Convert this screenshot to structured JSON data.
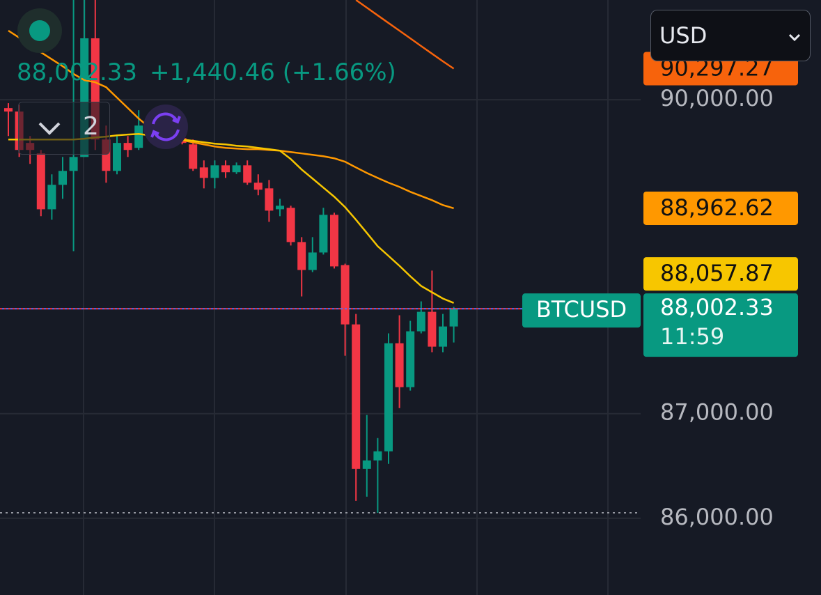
{
  "chart_data": {
    "type": "candlestick",
    "symbol": "BTCUSD",
    "currency": "USD",
    "last_price": 88002.33,
    "last_price_label": "88,002.33",
    "change_label": "+1,440.46 (+1.66%)",
    "indicator_count": 2,
    "countdown": "11:59",
    "ylim": [
      85267,
      90953
    ],
    "yticks": [
      {
        "value": 90000,
        "label": "90,000.00"
      },
      {
        "value": 87000,
        "label": "87,000.00"
      },
      {
        "value": 86000,
        "label": "86,000.00"
      }
    ],
    "grid": true,
    "up_color": "#089981",
    "down_color": "#f23645",
    "open": [
      89920,
      89887,
      89587,
      89487,
      88953,
      89187,
      89320,
      89453,
      90587,
      89620,
      89320,
      89587,
      89540,
      89720,
      89753,
      89653,
      89633,
      89573,
      89353,
      89253,
      89373,
      89307,
      89373,
      89207,
      89153,
      88953,
      88967,
      88640,
      88373,
      88540,
      88900,
      88420,
      87853,
      86473,
      86553,
      86640,
      87673,
      87253,
      87787,
      87973,
      87640,
      87833
    ],
    "high": [
      89967,
      89953,
      89653,
      89520,
      89287,
      89453,
      90953,
      90953,
      90953,
      89753,
      89653,
      89653,
      89900,
      89820,
      89853,
      89680,
      89650,
      89620,
      89420,
      89420,
      89420,
      89400,
      89420,
      89287,
      89233,
      89053,
      88987,
      88687,
      88687,
      88967,
      88920,
      88433,
      87953,
      86987,
      86767,
      87767,
      87940,
      87887,
      88073,
      88367,
      87953,
      88020
    ],
    "low": [
      89653,
      89453,
      89387,
      88887,
      88853,
      89053,
      88553,
      89453,
      89520,
      89207,
      89287,
      89453,
      89520,
      89690,
      89553,
      89600,
      89573,
      89320,
      89153,
      89153,
      89253,
      89290,
      89187,
      89087,
      88833,
      88887,
      88607,
      88120,
      88353,
      88520,
      88387,
      87553,
      86167,
      86207,
      86053,
      86520,
      87053,
      87220,
      87767,
      87587,
      87587,
      87680
    ],
    "close": [
      89887,
      89520,
      89520,
      88953,
      89187,
      89320,
      89453,
      90587,
      89620,
      89320,
      89587,
      89520,
      89753,
      89787,
      89620,
      89587,
      89587,
      89340,
      89253,
      89373,
      89307,
      89373,
      89207,
      89140,
      88940,
      88987,
      88640,
      88373,
      88540,
      88900,
      88407,
      87853,
      86473,
      86553,
      86640,
      87673,
      87253,
      87787,
      87973,
      87640,
      87833,
      88002.33
    ],
    "moving_averages": [
      {
        "color": "#f7630c",
        "value_label": "90,297.27",
        "values": [
          null,
          null,
          null,
          null,
          null,
          null,
          null,
          null,
          null,
          null,
          null,
          null,
          null,
          null,
          null,
          null,
          null,
          null,
          null,
          null,
          null,
          null,
          null,
          null,
          null,
          null,
          null,
          null,
          null,
          null,
          null,
          null,
          90953,
          90880,
          90806,
          90733,
          90660,
          90587,
          90513,
          90440,
          90367,
          90297.27
        ]
      },
      {
        "color": "#ff9800",
        "value_label": "88,962.62",
        "values": [
          90660,
          90593,
          90527,
          90453,
          90387,
          90320,
          90247,
          90187,
          90167,
          90120,
          90020,
          89920,
          89820,
          89733,
          89673,
          89633,
          89613,
          89593,
          89573,
          89553,
          89540,
          89533,
          89527,
          89527,
          89520,
          89513,
          89500,
          89487,
          89473,
          89460,
          89440,
          89407,
          89353,
          89300,
          89253,
          89207,
          89167,
          89120,
          89080,
          89040,
          88993,
          88962.62
        ]
      },
      {
        "color": "#f7c600",
        "value_label": "88,057.87",
        "values": [
          89620,
          89620,
          89620,
          89620,
          89620,
          89620,
          89620,
          89627,
          89640,
          89647,
          89660,
          89667,
          89673,
          89660,
          89647,
          89633,
          89620,
          89607,
          89593,
          89580,
          89573,
          89560,
          89553,
          89540,
          89527,
          89513,
          89433,
          89333,
          89247,
          89160,
          89073,
          88973,
          88853,
          88727,
          88600,
          88507,
          88413,
          88313,
          88220,
          88160,
          88100,
          88057.87
        ]
      }
    ]
  }
}
